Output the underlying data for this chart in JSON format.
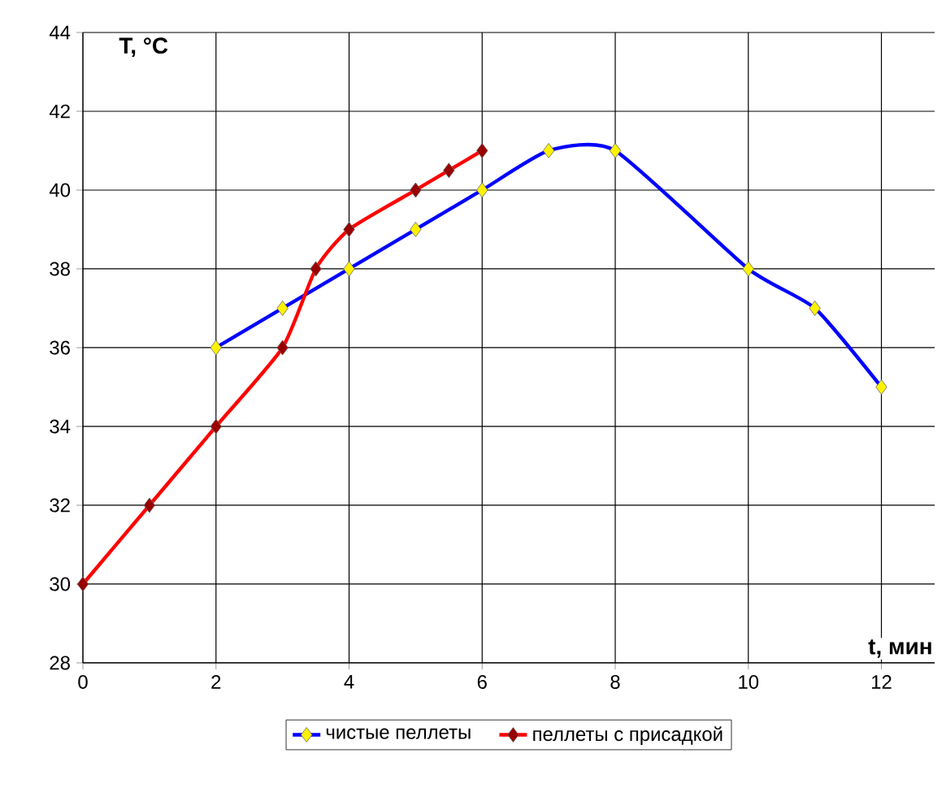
{
  "chart_data": {
    "type": "line",
    "xlabel": "t, мин",
    "ylabel": "T, °C",
    "xlim": [
      0,
      12.8
    ],
    "ylim": [
      28,
      44
    ],
    "xticks": [
      0,
      2,
      4,
      6,
      8,
      10,
      12
    ],
    "yticks": [
      28,
      30,
      32,
      34,
      36,
      38,
      40,
      42,
      44
    ],
    "grid": true,
    "legend": "bottom",
    "marker": "diamond",
    "line_style": "solid",
    "series": [
      {
        "name": "чистые пеллеты",
        "color": "#0000ff",
        "x": [
          2,
          3,
          4,
          5,
          6,
          7,
          8,
          10,
          11,
          12
        ],
        "values": [
          36,
          37,
          38,
          39,
          40,
          41,
          41,
          38,
          37,
          35
        ]
      },
      {
        "name": "пеллеты с присадкой",
        "color": "#ff0000",
        "x": [
          0,
          1,
          2,
          3,
          3.5,
          4,
          5,
          5.5,
          6
        ],
        "values": [
          30,
          32,
          34,
          36,
          38,
          39,
          40,
          40.5,
          41
        ]
      }
    ]
  }
}
